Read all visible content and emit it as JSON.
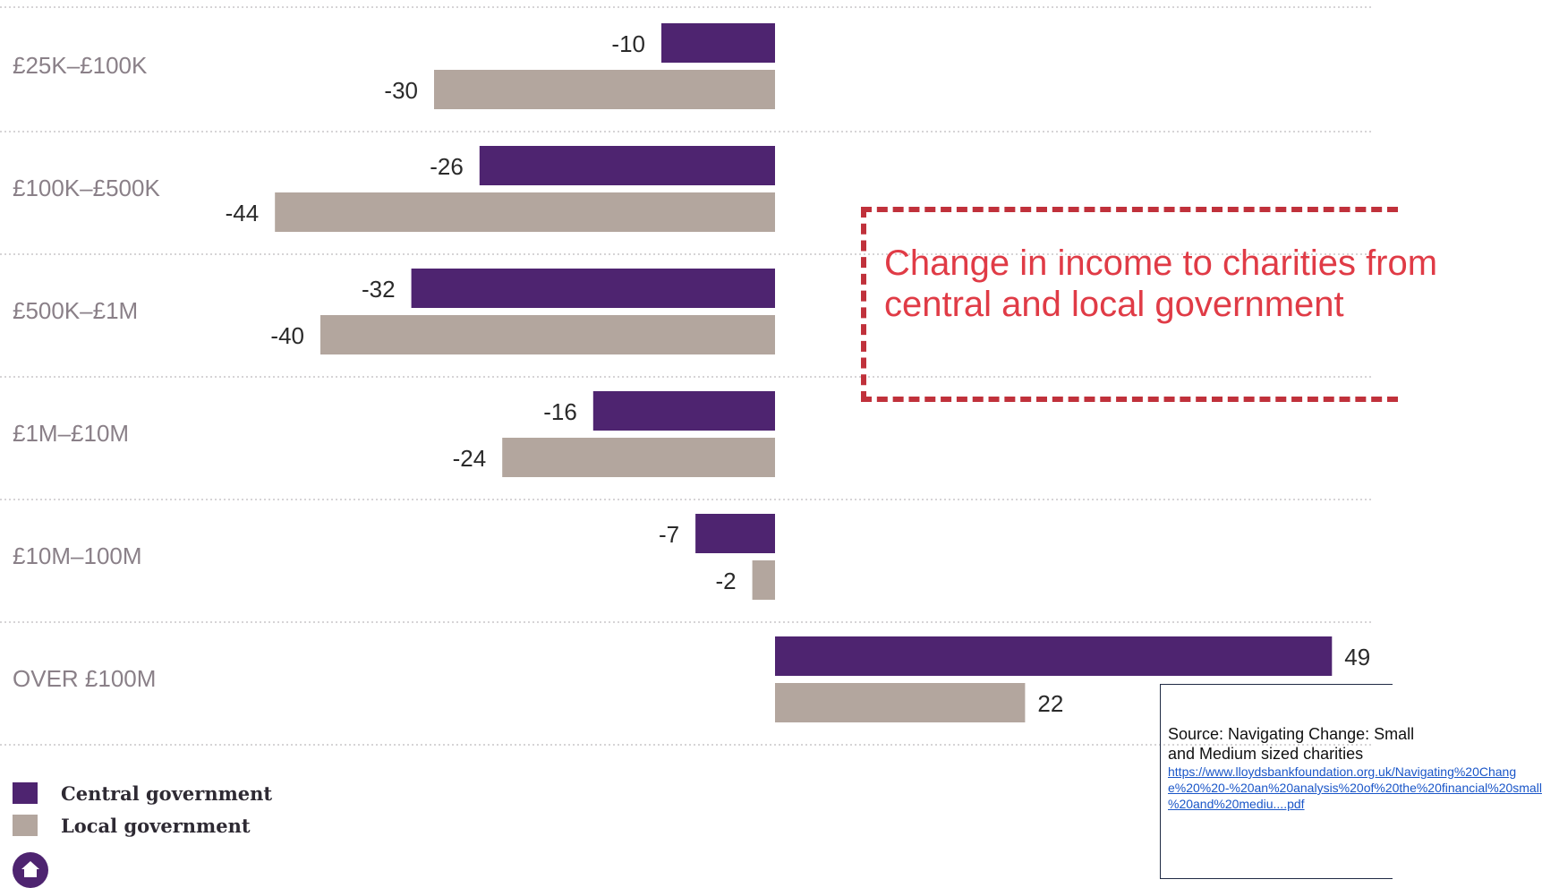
{
  "chart_data": {
    "type": "bar",
    "orientation": "horizontal",
    "categories": [
      "£25K–£100K",
      "£100K–£500K",
      "£500K–£1M",
      "£1M–£10M",
      "£10M–100M",
      "OVER £100M"
    ],
    "series": [
      {
        "name": "Central government",
        "color": "#4e2470",
        "values": [
          -10,
          -26,
          -32,
          -16,
          -7,
          49
        ]
      },
      {
        "name": "Local government",
        "color": "#b3a69e",
        "values": [
          -30,
          -44,
          -40,
          -24,
          -2,
          22
        ]
      }
    ],
    "value_labels": {
      "central": [
        "-10",
        "-26",
        "-32",
        "-16",
        "-7",
        "49"
      ],
      "local": [
        "-30",
        "-44",
        "-40",
        "-24",
        "-2",
        "22"
      ]
    },
    "legend_position": "bottom-left",
    "grid": "dotted horizontal separators between categories"
  },
  "legend": {
    "central": "Central government",
    "local": "Local government"
  },
  "callout": {
    "line1": "Change in income to charities from",
    "line2": "central and local government"
  },
  "source": {
    "line1": "Source:  Navigating Change: Small",
    "line2": "and Medium sized charities",
    "link1": "https://www.lloydsbankfoundation.org.uk/Navigating%20Chang",
    "link2": "e%20%20-%20an%20analysis%20of%20the%20financial%20small",
    "link3": "%20and%20mediu....pdf"
  },
  "icons": {
    "home": "home-icon"
  }
}
